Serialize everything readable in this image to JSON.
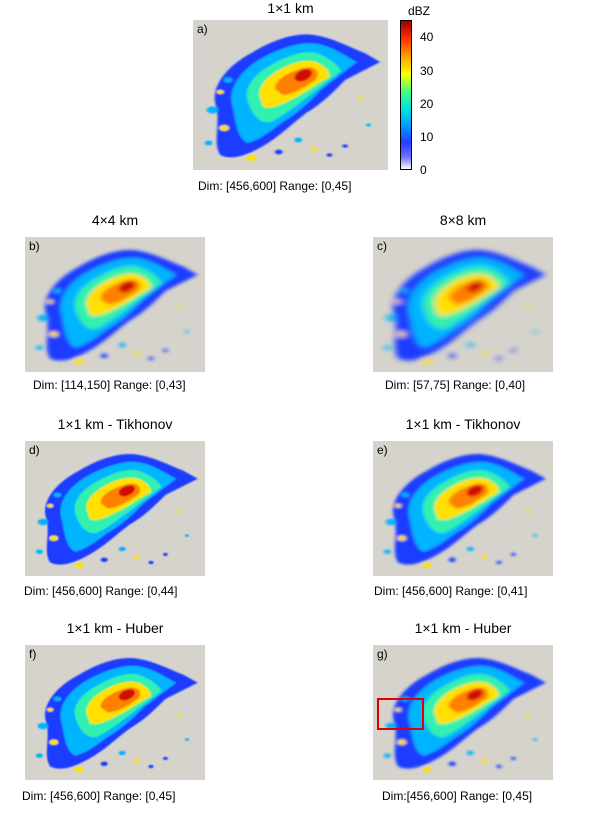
{
  "colorbar": {
    "unit": "dBZ",
    "ticks": [
      "40",
      "30",
      "20",
      "10",
      "0"
    ],
    "range": [
      0,
      45
    ]
  },
  "panels": {
    "a": {
      "letter": "a)",
      "title": "1×1 km",
      "caption": "Dim: [456,600]   Range: [0,45]"
    },
    "b": {
      "letter": "b)",
      "title": "4×4 km",
      "caption": "Dim: [114,150]   Range: [0,43]"
    },
    "c": {
      "letter": "c)",
      "title": "8×8 km",
      "caption": "Dim: [57,75]   Range: [0,40]"
    },
    "d": {
      "letter": "d)",
      "title": "1×1 km - Tikhonov",
      "caption": "Dim: [456,600]   Range: [0,44]"
    },
    "e": {
      "letter": "e)",
      "title": "1×1 km - Tikhonov",
      "caption": "Dim: [456,600]   Range: [0,41]"
    },
    "f": {
      "letter": "f)",
      "title": "1×1 km - Huber",
      "caption": "Dim: [456,600]  Range: [0,45]"
    },
    "g": {
      "letter": "g)",
      "title": "1×1 km - Huber",
      "caption": "Dim:[456,600]    Range: [0,45]"
    }
  },
  "colors": {
    "background": "#d6d3cc",
    "highlight_box": "#e00000"
  }
}
